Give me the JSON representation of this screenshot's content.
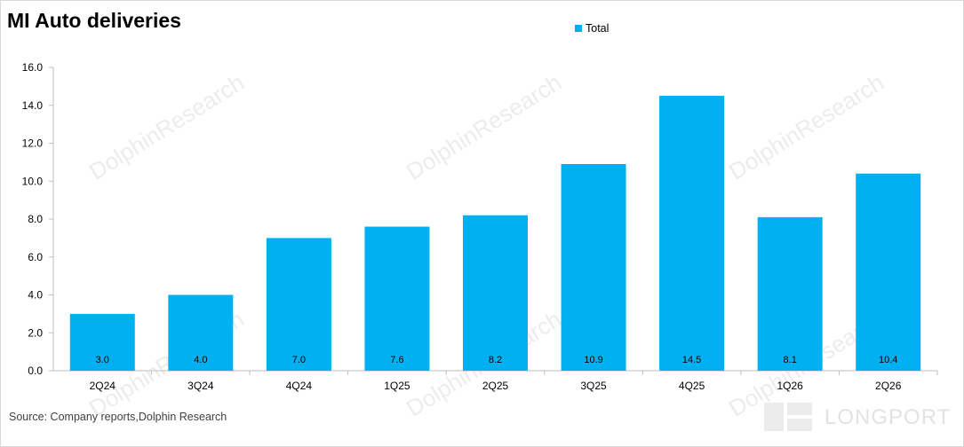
{
  "title": "MI Auto deliveries",
  "source": "Source: Company reports,Dolphin Research",
  "watermark": "DolphinResearch",
  "logo_text": "LONGPORT",
  "colors": {
    "bar": "#00b0f0",
    "axis": "#bfbfbf"
  },
  "chart_data": {
    "type": "bar",
    "categories": [
      "2Q24",
      "3Q24",
      "4Q24",
      "1Q25",
      "2Q25",
      "3Q25",
      "4Q25",
      "1Q26",
      "2Q26"
    ],
    "series": [
      {
        "name": "Total",
        "values": [
          3.0,
          4.0,
          7.0,
          7.6,
          8.2,
          10.9,
          14.5,
          8.1,
          10.4
        ],
        "labels": [
          "3.0",
          "4.0",
          "7.0",
          "7.6",
          "8.2",
          "10.9",
          "14.5",
          "8.1",
          "10.4"
        ]
      }
    ],
    "ylim": [
      0,
      16
    ],
    "yticks": [
      "0.0",
      "2.0",
      "4.0",
      "6.0",
      "8.0",
      "10.0",
      "12.0",
      "14.0",
      "16.0"
    ],
    "grid": false,
    "legend_position": "top-center",
    "data_labels": "inside-base"
  }
}
